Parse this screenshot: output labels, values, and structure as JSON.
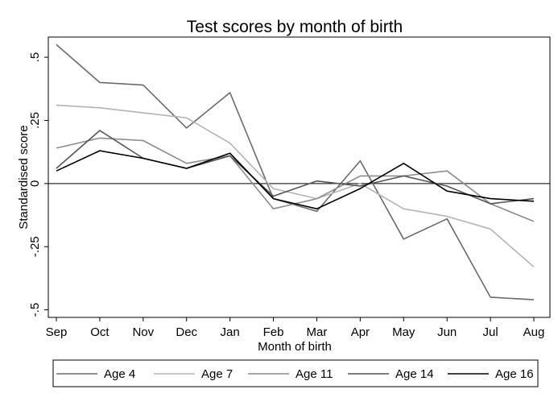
{
  "chart_data": {
    "type": "line",
    "title": "Test scores by month of birth",
    "xlabel": "Month of birth",
    "ylabel": "Standardised score",
    "categories": [
      "Sep",
      "Oct",
      "Nov",
      "Dec",
      "Jan",
      "Feb",
      "Mar",
      "Apr",
      "May",
      "Jun",
      "Jul",
      "Aug"
    ],
    "yticks": [
      ".5",
      ".25",
      "0",
      "-.25",
      "-.5"
    ],
    "ytick_values": [
      0.5,
      0.25,
      0,
      -0.25,
      -0.5
    ],
    "ylim": [
      -0.53,
      0.58
    ],
    "reference_line": 0,
    "grid": false,
    "legend_position": "bottom",
    "series": [
      {
        "name": "Age 4",
        "color": "#6b6b6b",
        "values": [
          0.55,
          0.4,
          0.39,
          0.22,
          0.36,
          -0.06,
          -0.11,
          0.09,
          -0.22,
          -0.14,
          -0.45,
          -0.46
        ]
      },
      {
        "name": "Age 7",
        "color": "#b4b4b4",
        "values": [
          0.31,
          0.3,
          0.28,
          0.26,
          0.16,
          -0.02,
          -0.06,
          0.0,
          -0.1,
          -0.13,
          -0.18,
          -0.33
        ]
      },
      {
        "name": "Age 11",
        "color": "#8c8c8c",
        "values": [
          0.14,
          0.18,
          0.17,
          0.08,
          0.11,
          -0.1,
          -0.06,
          0.03,
          0.03,
          0.05,
          -0.08,
          -0.15
        ]
      },
      {
        "name": "Age 14",
        "color": "#555555",
        "values": [
          0.06,
          0.21,
          0.1,
          0.06,
          0.11,
          -0.05,
          0.01,
          -0.01,
          0.03,
          -0.01,
          -0.08,
          -0.06
        ]
      },
      {
        "name": "Age 16",
        "color": "#000000",
        "values": [
          0.05,
          0.13,
          0.1,
          0.06,
          0.12,
          -0.06,
          -0.1,
          -0.02,
          0.08,
          -0.03,
          -0.06,
          -0.07
        ]
      }
    ]
  }
}
